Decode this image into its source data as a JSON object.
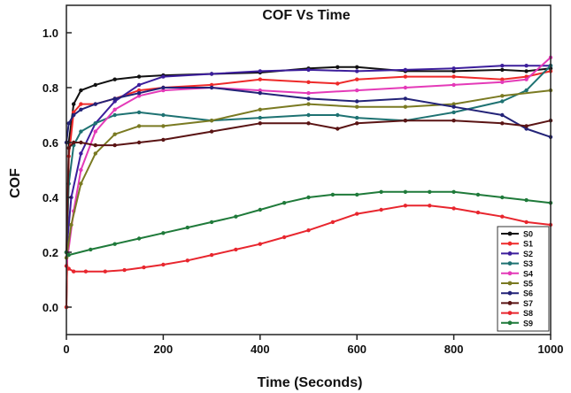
{
  "chart_data": {
    "type": "line",
    "title": "COF Vs Time",
    "xlabel": "Time (Seconds)",
    "ylabel": "COF",
    "xlim": [
      0,
      1000
    ],
    "ylim": [
      -0.1,
      1.1
    ],
    "xticks": [
      0,
      200,
      400,
      600,
      800,
      1000
    ],
    "yticks": [
      0.0,
      0.2,
      0.4,
      0.6,
      0.8,
      1.0
    ],
    "xtick_labels": [
      "0",
      "200",
      "400",
      "600",
      "800",
      "1000"
    ],
    "ytick_labels": [
      "0.0",
      "0.2",
      "0.4",
      "0.6",
      "0.8",
      "1.0"
    ],
    "grid": false,
    "legend_position": "bottom-right",
    "series": [
      {
        "name": "S0",
        "color": "#111111",
        "x": [
          0,
          5,
          15,
          30,
          60,
          100,
          150,
          200,
          300,
          400,
          500,
          560,
          600,
          700,
          800,
          900,
          950,
          1000
        ],
        "y": [
          0.0,
          0.6,
          0.74,
          0.79,
          0.81,
          0.83,
          0.84,
          0.845,
          0.85,
          0.855,
          0.87,
          0.875,
          0.875,
          0.86,
          0.86,
          0.865,
          0.86,
          0.87
        ]
      },
      {
        "name": "S1",
        "color": "#ee2a2a",
        "x": [
          0,
          5,
          15,
          30,
          60,
          100,
          150,
          200,
          300,
          400,
          500,
          560,
          600,
          700,
          800,
          900,
          950,
          1000
        ],
        "y": [
          0.0,
          0.55,
          0.71,
          0.74,
          0.74,
          0.76,
          0.79,
          0.8,
          0.81,
          0.83,
          0.82,
          0.815,
          0.83,
          0.84,
          0.84,
          0.83,
          0.84,
          0.86
        ]
      },
      {
        "name": "S2",
        "color": "#3c1e9c",
        "x": [
          0,
          10,
          30,
          60,
          100,
          150,
          200,
          300,
          400,
          500,
          600,
          700,
          800,
          900,
          950,
          1000
        ],
        "y": [
          0.2,
          0.4,
          0.56,
          0.67,
          0.75,
          0.81,
          0.84,
          0.85,
          0.86,
          0.865,
          0.86,
          0.865,
          0.87,
          0.88,
          0.88,
          0.88
        ]
      },
      {
        "name": "S3",
        "color": "#1e7272",
        "x": [
          0,
          5,
          15,
          30,
          60,
          100,
          150,
          200,
          300,
          400,
          500,
          560,
          600,
          700,
          800,
          900,
          950,
          1000
        ],
        "y": [
          0.2,
          0.45,
          0.59,
          0.64,
          0.67,
          0.7,
          0.71,
          0.7,
          0.68,
          0.69,
          0.7,
          0.7,
          0.69,
          0.68,
          0.71,
          0.75,
          0.79,
          0.88
        ]
      },
      {
        "name": "S4",
        "color": "#e43ab8",
        "x": [
          0,
          15,
          30,
          60,
          100,
          150,
          200,
          300,
          400,
          500,
          600,
          700,
          800,
          900,
          950,
          1000
        ],
        "y": [
          0.15,
          0.35,
          0.5,
          0.64,
          0.72,
          0.77,
          0.79,
          0.8,
          0.79,
          0.78,
          0.79,
          0.8,
          0.81,
          0.82,
          0.83,
          0.91
        ]
      },
      {
        "name": "S5",
        "color": "#7a7a22",
        "x": [
          0,
          10,
          30,
          60,
          100,
          150,
          200,
          300,
          400,
          500,
          600,
          700,
          800,
          900,
          1000
        ],
        "y": [
          0.18,
          0.3,
          0.45,
          0.56,
          0.63,
          0.66,
          0.66,
          0.68,
          0.72,
          0.74,
          0.73,
          0.73,
          0.74,
          0.77,
          0.79
        ]
      },
      {
        "name": "S6",
        "color": "#232378",
        "x": [
          0,
          5,
          15,
          30,
          60,
          100,
          150,
          200,
          300,
          400,
          500,
          600,
          700,
          800,
          900,
          950,
          1000
        ],
        "y": [
          0.6,
          0.67,
          0.7,
          0.72,
          0.74,
          0.76,
          0.78,
          0.8,
          0.8,
          0.78,
          0.76,
          0.75,
          0.76,
          0.73,
          0.7,
          0.65,
          0.62
        ]
      },
      {
        "name": "S7",
        "color": "#5a1414",
        "x": [
          0,
          5,
          15,
          30,
          60,
          100,
          150,
          200,
          300,
          400,
          500,
          560,
          600,
          700,
          800,
          900,
          950,
          1000
        ],
        "y": [
          0.2,
          0.58,
          0.6,
          0.6,
          0.59,
          0.59,
          0.6,
          0.61,
          0.64,
          0.67,
          0.67,
          0.65,
          0.67,
          0.68,
          0.68,
          0.67,
          0.66,
          0.68
        ]
      },
      {
        "name": "S8",
        "color": "#e8262e",
        "x": [
          0,
          5,
          15,
          40,
          80,
          120,
          160,
          200,
          250,
          300,
          350,
          400,
          450,
          500,
          550,
          600,
          650,
          700,
          750,
          800,
          850,
          900,
          950,
          1000
        ],
        "y": [
          0.15,
          0.14,
          0.13,
          0.13,
          0.13,
          0.135,
          0.145,
          0.155,
          0.17,
          0.19,
          0.21,
          0.23,
          0.255,
          0.28,
          0.31,
          0.34,
          0.355,
          0.37,
          0.37,
          0.36,
          0.345,
          0.33,
          0.31,
          0.3
        ]
      },
      {
        "name": "S9",
        "color": "#1f7a3a",
        "x": [
          0,
          5,
          50,
          100,
          150,
          200,
          250,
          300,
          350,
          400,
          450,
          500,
          550,
          600,
          650,
          700,
          750,
          800,
          850,
          900,
          950,
          1000
        ],
        "y": [
          0.2,
          0.19,
          0.21,
          0.23,
          0.25,
          0.27,
          0.29,
          0.31,
          0.33,
          0.355,
          0.38,
          0.4,
          0.41,
          0.41,
          0.42,
          0.42,
          0.42,
          0.42,
          0.41,
          0.4,
          0.39,
          0.38
        ]
      }
    ]
  }
}
